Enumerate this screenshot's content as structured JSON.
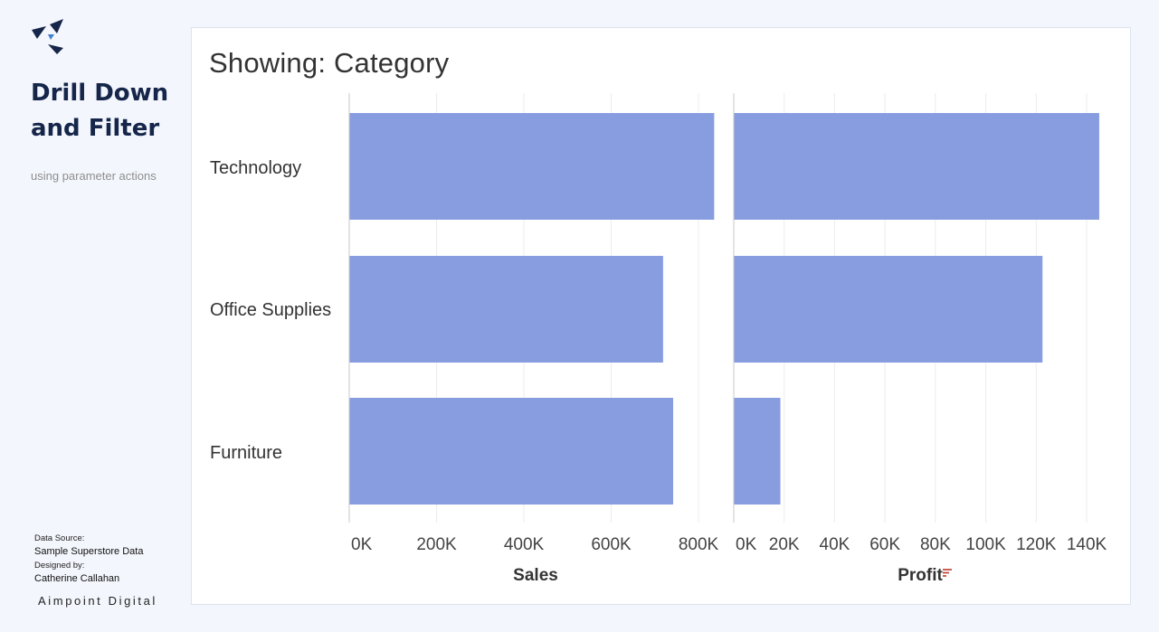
{
  "sidebar": {
    "logo_icon": "aimpoint-arrows-icon",
    "title": "Drill Down and Filter",
    "subtitle": "using parameter actions",
    "credits": {
      "source_label": "Data Source:",
      "source_value": "Sample Superstore Data",
      "designer_label": "Designed by:",
      "designer_value": "Catherine Callahan"
    },
    "brand": "Aimpoint Digital"
  },
  "panel": {
    "title": "Showing: Category"
  },
  "colors": {
    "bar": "#889de0",
    "brand_navy": "#15264a",
    "sort_icon": "#c0392b"
  },
  "chart_data": {
    "type": "bar",
    "orientation": "horizontal",
    "categories": [
      "Technology",
      "Office Supplies",
      "Furniture"
    ],
    "panes": [
      {
        "measure": "Sales",
        "xlabel": "Sales",
        "values": [
          836000,
          719000,
          742000
        ],
        "xlim": [
          0,
          800000
        ],
        "ticks": [
          0,
          200000,
          400000,
          600000,
          800000
        ],
        "tick_labels": [
          "0K",
          "200K",
          "400K",
          "600K",
          "800K"
        ]
      },
      {
        "measure": "Profit",
        "xlabel": "Profit",
        "values": [
          145000,
          122500,
          18500
        ],
        "xlim": [
          0,
          140000
        ],
        "ticks": [
          0,
          20000,
          40000,
          60000,
          80000,
          100000,
          120000,
          140000
        ],
        "tick_labels": [
          "0K",
          "20K",
          "40K",
          "60K",
          "80K",
          "100K",
          "120K",
          "140K"
        ],
        "sorted": true,
        "sort_icon": "sort-descending-icon"
      }
    ],
    "grid": true,
    "legend": "none"
  }
}
